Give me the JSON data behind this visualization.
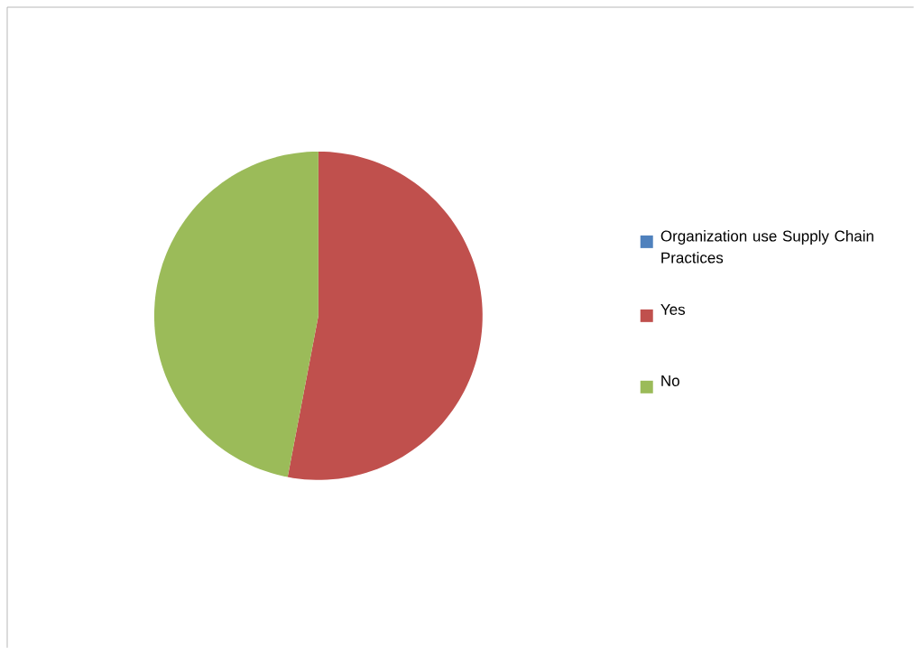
{
  "chart_data": {
    "type": "pie",
    "categories": [
      "Organization use Supply Chain Practices",
      "Yes",
      "No"
    ],
    "values": [
      0,
      53,
      47
    ],
    "colors": [
      "#4f81bd",
      "#c0504d",
      "#9bbb59"
    ],
    "legend": "right"
  }
}
